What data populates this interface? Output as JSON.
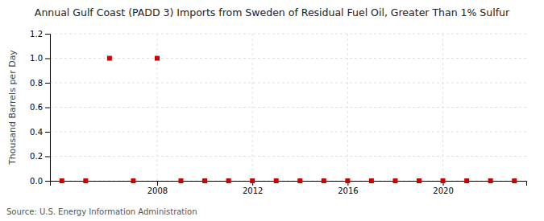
{
  "chart_data": {
    "type": "scatter",
    "title": "Annual Gulf Coast (PADD 3) Imports from Sweden of Residual Fuel Oil, Greater Than 1% Sulfur",
    "ylabel": "Thousand Barrels per Day",
    "annotations": [
      "Source: U.S. Energy Information Administration"
    ],
    "x": [
      2004,
      2005,
      2006,
      2007,
      2008,
      2009,
      2010,
      2011,
      2012,
      2013,
      2014,
      2015,
      2016,
      2017,
      2018,
      2019,
      2020,
      2021,
      2022,
      2023
    ],
    "values": [
      0.0,
      0.0,
      1.0,
      0.0,
      1.0,
      0.0,
      0.0,
      0.0,
      0.0,
      0.0,
      0.0,
      0.0,
      0.0,
      0.0,
      0.0,
      0.0,
      0.0,
      0.0,
      0.0,
      0.0
    ],
    "color": "#cc0000",
    "marker": "square",
    "xlim": [
      2003.5,
      2023.5
    ],
    "xticks": [
      2008,
      2012,
      2016,
      2020
    ],
    "ylim": [
      0.0,
      1.2
    ],
    "yticks": [
      {
        "value": 0.0,
        "label": "0.0"
      },
      0.2,
      0.4,
      0.6,
      0.8,
      {
        "value": 1.0,
        "label": "1.0"
      },
      1.2
    ],
    "grid": true
  }
}
